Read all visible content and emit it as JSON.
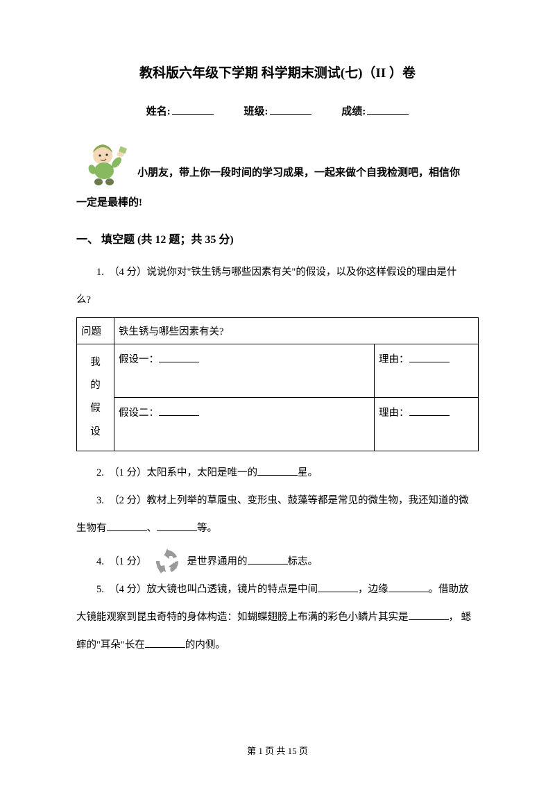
{
  "title": "教科版六年级下学期 科学期末测试(七)（II ）卷",
  "info": {
    "name_label": "姓名:",
    "class_label": "班级:",
    "score_label": "成绩:"
  },
  "intro": {
    "line1": "小朋友，带上你一段时间的学习成果，一起来做个自我检测吧，相信你",
    "line2": "一定是最棒的!"
  },
  "section1": {
    "heading": "一、 填空题  (共 12 题；共 35 分)"
  },
  "q1": {
    "text_a": "1.　（4 分）说说你对\"铁生锈与哪些因素有关\"的假设，以及你这样假设的理由是什",
    "text_b": "么?"
  },
  "table": {
    "r1c1": "问题",
    "r1c2": "铁生锈与哪些因素有关?",
    "vcol_text": "我\n的\n假\n设",
    "hyp1_label": "假设一：",
    "reason_label": "理由：",
    "hyp2_label": "假设二："
  },
  "q2": {
    "pre": "2.　（1 分）太阳系中，太阳是唯一的",
    "post": "星。"
  },
  "q3": {
    "pre": "3.　（2 分）教材上列举的草履虫、变形虫、鼓藻等都是常见的微生物，我还知道的微",
    "mid": "生物有",
    "sep": "、",
    "post": "等。"
  },
  "q4": {
    "pre": "4.　（1 分）",
    "mid": "是世界通用的",
    "post": "标志。"
  },
  "q5": {
    "line1_a": "5.　（4 分）放大镜也叫凸透镜，镜片的特点是中间",
    "line1_b": "，边缘",
    "line1_c": "。借助放",
    "line2_a": "大镜能观察到昆虫奇特的身体构造：如蝴蝶翅膀上布满的彩色小鳞片其实是",
    "line2_b": "， 蟋",
    "line3_a": "蟀的\"耳朵\"长在",
    "line3_b": "的内侧。"
  },
  "footer": "第  1  页  共  15  页",
  "colors": {
    "text": "#000000",
    "bg": "#ffffff",
    "cartoon_skin": "#f3d9b8",
    "cartoon_shirt": "#86b960",
    "cartoon_hand": "#8aa84f",
    "recycle": "#9a9a9a"
  }
}
